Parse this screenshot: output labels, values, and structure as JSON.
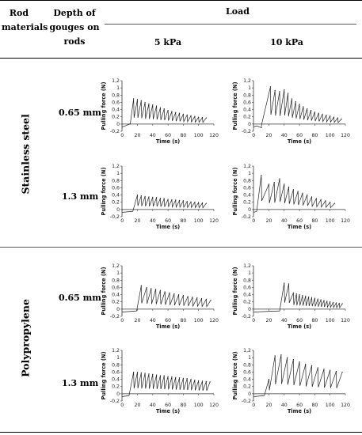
{
  "table": {
    "header": {
      "col1": "Rod materials",
      "col2": "Depth of gouges on rods",
      "load": "Load",
      "load_5": "5 kPa",
      "load_10": "10 kPa"
    },
    "materials": [
      "Stainless steel",
      "Polypropylene"
    ],
    "depths": [
      "0.65 mm",
      "1.3 mm",
      "0.65 mm",
      "1.3 mm"
    ]
  },
  "chart_data": [
    {
      "type": "line",
      "material": "Stainless steel",
      "depth": "0.65 mm",
      "load": "5 kPa",
      "xlabel": "Time (s)",
      "ylabel": "Pulling force (N)",
      "xlim": [
        -0.2,
        120
      ],
      "ylim": [
        -0.2,
        1.2
      ],
      "xticks": [
        0,
        20,
        40,
        60,
        80,
        100,
        120
      ],
      "yticks": [
        -0.2,
        0,
        0.2,
        0.4,
        0.6,
        0.8,
        1,
        1.2
      ],
      "series": [
        {
          "x": [
            10,
            15,
            20,
            25,
            30,
            35,
            40,
            45,
            50,
            55,
            60,
            65,
            70,
            75,
            80,
            85,
            90,
            95,
            100,
            105,
            110
          ],
          "y": [
            0,
            0.7,
            0.68,
            0.65,
            0.6,
            0.56,
            0.53,
            0.5,
            0.45,
            0.42,
            0.38,
            0.35,
            0.32,
            0.3,
            0.27,
            0.25,
            0.23,
            0.21,
            0.19,
            0.18,
            0.17
          ]
        }
      ]
    },
    {
      "type": "line",
      "material": "Stainless steel",
      "depth": "0.65 mm",
      "load": "10 kPa",
      "xlabel": "Time (s)",
      "ylabel": "Pulling force (N)",
      "xlim": [
        -0.2,
        120
      ],
      "ylim": [
        -0.2,
        1.2
      ],
      "xticks": [
        0,
        20,
        40,
        60,
        80,
        100,
        120
      ],
      "yticks": [
        -0.2,
        0,
        0.2,
        0.4,
        0.6,
        0.8,
        1,
        1.2
      ],
      "series": [
        {
          "x": [
            10,
            22,
            28,
            34,
            40,
            45,
            50,
            55,
            60,
            65,
            70,
            75,
            80,
            85,
            90,
            95,
            100,
            105,
            110,
            115
          ],
          "y": [
            -0.1,
            1.03,
            0.93,
            0.9,
            0.95,
            0.85,
            0.7,
            0.62,
            0.55,
            0.48,
            0.42,
            0.38,
            0.33,
            0.3,
            0.27,
            0.24,
            0.22,
            0.19,
            0.17,
            0.14
          ]
        }
      ]
    },
    {
      "type": "line",
      "material": "Stainless steel",
      "depth": "1.3 mm",
      "load": "5 kPa",
      "xlabel": "Time (s)",
      "ylabel": "Pulling force (N)",
      "xlim": [
        -0.2,
        120
      ],
      "ylim": [
        -0.2,
        1.2
      ],
      "xticks": [
        0,
        20,
        40,
        60,
        80,
        100,
        120
      ],
      "yticks": [
        -0.2,
        0,
        0.2,
        0.4,
        0.6,
        0.8,
        1,
        1.2
      ],
      "series": [
        {
          "x": [
            20,
            25,
            30,
            35,
            40,
            45,
            50,
            55,
            60,
            65,
            70,
            75,
            80,
            85,
            90,
            95,
            100,
            105,
            110
          ],
          "y": [
            0.4,
            0.38,
            0.36,
            0.35,
            0.34,
            0.33,
            0.31,
            0.3,
            0.28,
            0.27,
            0.26,
            0.25,
            0.24,
            0.22,
            0.21,
            0.2,
            0.19,
            0.18,
            0.17
          ]
        }
      ]
    },
    {
      "type": "line",
      "material": "Stainless steel",
      "depth": "1.3 mm",
      "load": "10 kPa",
      "xlabel": "Time (s)",
      "ylabel": "Pulling force (N)",
      "xlim": [
        -0.2,
        120
      ],
      "ylim": [
        -0.2,
        1.2
      ],
      "xticks": [
        0,
        20,
        40,
        60,
        80,
        100,
        120
      ],
      "yticks": [
        -0.2,
        0,
        0.2,
        0.4,
        0.6,
        0.8,
        1,
        1.2
      ],
      "series": [
        {
          "x": [
            10,
            20,
            27,
            34,
            40,
            46,
            52,
            58,
            64,
            70,
            76,
            82,
            88,
            94,
            100,
            106
          ],
          "y": [
            0.95,
            0.7,
            0.75,
            0.85,
            0.7,
            0.62,
            0.55,
            0.5,
            0.45,
            0.4,
            0.35,
            0.3,
            0.27,
            0.24,
            0.2,
            0.17
          ]
        }
      ]
    },
    {
      "type": "line",
      "material": "Polypropylene",
      "depth": "0.65 mm",
      "load": "5 kPa",
      "xlabel": "Time (s)",
      "ylabel": "Pulling force (N)",
      "xlim": [
        -0.2,
        120
      ],
      "ylim": [
        -0.2,
        1.2
      ],
      "xticks": [
        0,
        20,
        40,
        60,
        80,
        100,
        120
      ],
      "yticks": [
        -0.2,
        0,
        0.2,
        0.4,
        0.6,
        0.8,
        1,
        1.2
      ],
      "series": [
        {
          "x": [
            25,
            32,
            38,
            44,
            50,
            56,
            62,
            68,
            74,
            80,
            86,
            92,
            98,
            104,
            110,
            116
          ],
          "y": [
            0.65,
            0.6,
            0.57,
            0.55,
            0.52,
            0.48,
            0.45,
            0.42,
            0.4,
            0.38,
            0.35,
            0.33,
            0.31,
            0.29,
            0.27,
            0.25
          ]
        }
      ]
    },
    {
      "type": "line",
      "material": "Polypropylene",
      "depth": "0.65 mm",
      "load": "10 kPa",
      "xlabel": "Time (s)",
      "ylabel": "Pulling force (N)",
      "xlim": [
        -0.2,
        120
      ],
      "ylim": [
        -0.2,
        1.2
      ],
      "xticks": [
        0,
        20,
        40,
        60,
        80,
        100,
        120
      ],
      "yticks": [
        -0.2,
        0,
        0.2,
        0.4,
        0.6,
        0.8,
        1,
        1.2
      ],
      "series": [
        {
          "x": [
            40,
            46,
            52,
            56,
            60,
            64,
            68,
            72,
            76,
            80,
            84,
            88,
            92,
            96,
            100,
            104,
            108,
            112,
            116
          ],
          "y": [
            0.72,
            0.7,
            0.45,
            0.42,
            0.4,
            0.38,
            0.36,
            0.34,
            0.32,
            0.3,
            0.28,
            0.26,
            0.24,
            0.22,
            0.2,
            0.18,
            0.17,
            0.16,
            0.15
          ]
        }
      ]
    },
    {
      "type": "line",
      "material": "Polypropylene",
      "depth": "1.3 mm",
      "load": "5 kPa",
      "xlabel": "Time (s)",
      "ylabel": "Pulling force (N)",
      "xlim": [
        -0.2,
        120
      ],
      "ylim": [
        -0.2,
        1.2
      ],
      "xticks": [
        0,
        20,
        40,
        60,
        80,
        100,
        120
      ],
      "yticks": [
        -0.2,
        0,
        0.2,
        0.4,
        0.6,
        0.8,
        1,
        1.2
      ],
      "series": [
        {
          "x": [
            15,
            20,
            25,
            30,
            35,
            40,
            45,
            50,
            55,
            60,
            65,
            70,
            75,
            80,
            85,
            90,
            95,
            100,
            105,
            110,
            115
          ],
          "y": [
            0.6,
            0.6,
            0.58,
            0.57,
            0.55,
            0.54,
            0.52,
            0.5,
            0.5,
            0.48,
            0.47,
            0.45,
            0.44,
            0.43,
            0.42,
            0.4,
            0.38,
            0.36,
            0.35,
            0.34,
            0.33
          ]
        }
      ]
    },
    {
      "type": "line",
      "material": "Polypropylene",
      "depth": "1.3 mm",
      "load": "10 kPa",
      "xlabel": "Time (s)",
      "ylabel": "Pulling force (N)",
      "xlim": [
        -0.2,
        120
      ],
      "ylim": [
        -0.2,
        1.2
      ],
      "xticks": [
        0,
        20,
        40,
        60,
        80,
        100,
        120
      ],
      "yticks": [
        -0.2,
        0,
        0.2,
        0.4,
        0.6,
        0.8,
        1,
        1.2
      ],
      "series": [
        {
          "x": [
            20,
            28,
            36,
            44,
            52,
            60,
            68,
            76,
            84,
            92,
            100,
            108,
            116
          ],
          "y": [
            0.4,
            1.05,
            1.08,
            1.0,
            0.95,
            0.88,
            0.82,
            0.78,
            0.72,
            0.68,
            0.65,
            0.62,
            0.6
          ]
        }
      ]
    }
  ]
}
